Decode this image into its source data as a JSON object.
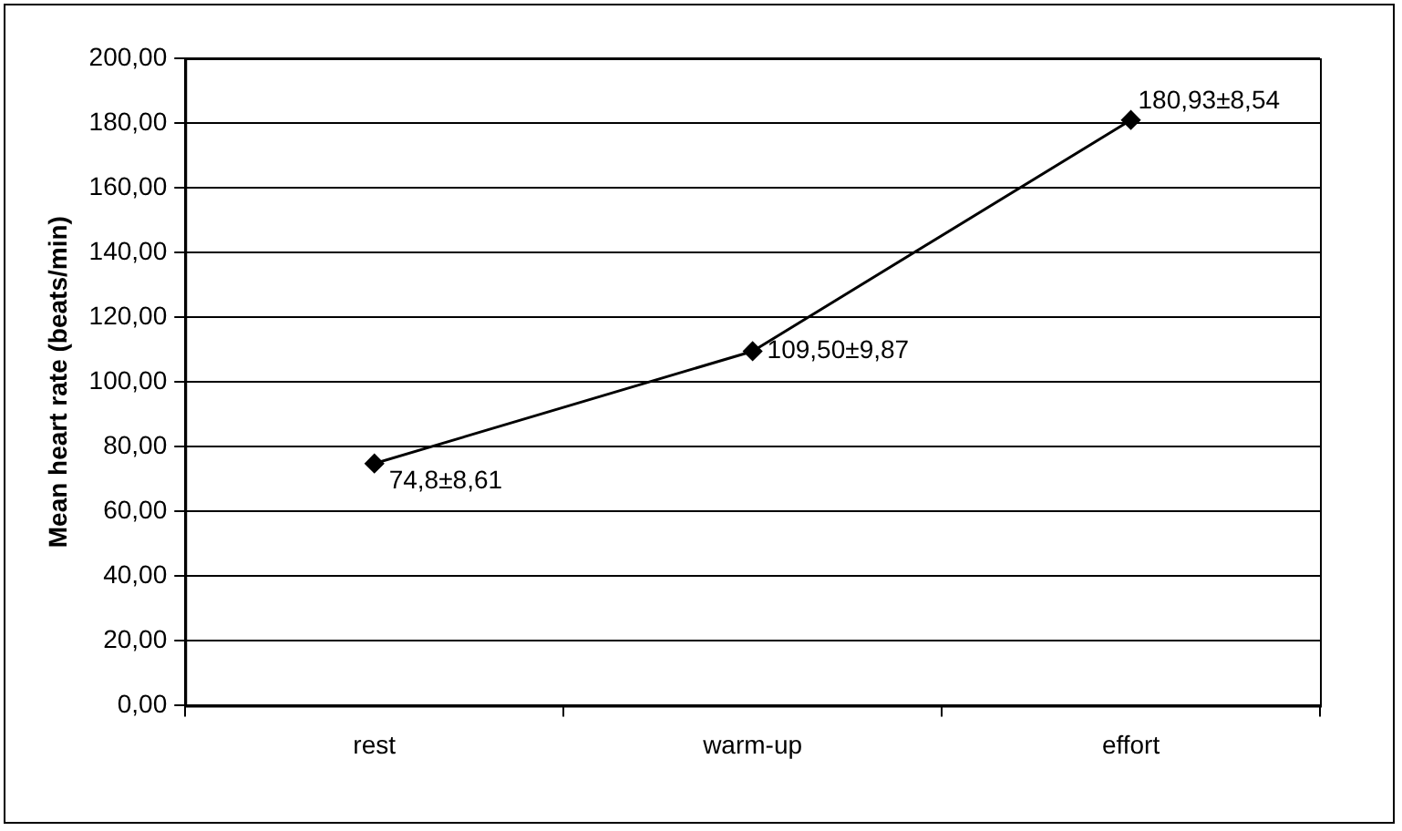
{
  "chart_data": {
    "type": "line",
    "ylabel": "Mean heart rate (beats/min)",
    "categories": [
      "rest",
      "warm-up",
      "effort"
    ],
    "series": [
      {
        "color": "#000000",
        "values": [
          74.8,
          109.5,
          180.93
        ],
        "value_labels": [
          "74,8±8,61",
          "109,50±9,87",
          "180,93±8,54"
        ]
      }
    ],
    "ylim": [
      0,
      200
    ],
    "yticks": [
      {
        "value": 0,
        "label": "0,00"
      },
      {
        "value": 20,
        "label": "20,00"
      },
      {
        "value": 40,
        "label": "40,00"
      },
      {
        "value": 60,
        "label": "60,00"
      },
      {
        "value": 80,
        "label": "80,00"
      },
      {
        "value": 100,
        "label": "100,00"
      },
      {
        "value": 120,
        "label": "120,00"
      },
      {
        "value": 140,
        "label": "140,00"
      },
      {
        "value": 160,
        "label": "160,00"
      },
      {
        "value": 180,
        "label": "180,00"
      },
      {
        "value": 200,
        "label": "200,00"
      }
    ],
    "grid": "y",
    "legend": false,
    "marker": "diamond",
    "line_style": "solid"
  }
}
